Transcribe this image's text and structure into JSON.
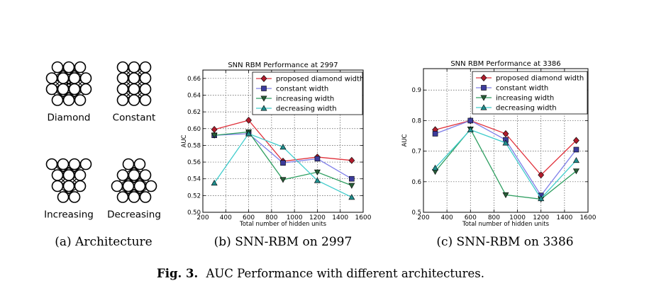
{
  "architecture": {
    "labels": [
      "Diamond",
      "Constant",
      "Increasing",
      "Decreasing"
    ],
    "networks": [
      {
        "name": "Diamond",
        "layers": [
          3,
          4,
          4,
          3
        ]
      },
      {
        "name": "Constant",
        "layers": [
          3,
          3,
          3,
          3
        ]
      },
      {
        "name": "Increasing",
        "layers": [
          4,
          3,
          3,
          2
        ]
      },
      {
        "name": "Decreasing",
        "layers": [
          2,
          3,
          4,
          3
        ]
      }
    ]
  },
  "subcaptions": {
    "a": "(a) Architecture",
    "b": "(b) SNN-RBM on 2997",
    "c": "(c) SNN-RBM on 3386"
  },
  "caption": {
    "bold": "Fig. 3.",
    "text": "AUC Performance with different architectures."
  },
  "chart_data": [
    {
      "type": "line",
      "title": "SNN RBM Performance at 2997",
      "xlabel": "Total number of hidden units",
      "ylabel": "AUC",
      "xlim": [
        200,
        1600
      ],
      "ylim": [
        0.5,
        0.67
      ],
      "xticks": [
        200,
        400,
        600,
        800,
        1000,
        1200,
        1400,
        1600
      ],
      "xtick_labels": [
        "200",
        "400",
        "600",
        "800",
        "1000",
        "1200",
        "1400",
        "1600"
      ],
      "yticks": [
        0.5,
        0.52,
        0.54,
        0.56,
        0.58,
        0.6,
        0.62,
        0.64,
        0.66
      ],
      "ytick_labels": [
        "0.50",
        "0.52",
        "0.54",
        "0.56",
        "0.58",
        "0.60",
        "0.62",
        "0.64",
        "0.66"
      ],
      "grid": true,
      "legend_position": "top-right",
      "x": [
        300,
        600,
        900,
        1200,
        1500
      ],
      "series": [
        {
          "name": "proposed diamond width",
          "color": "#e0303a",
          "marker_color": "#b01c2c",
          "marker": "diamond",
          "values": [
            0.599,
            0.61,
            0.561,
            0.566,
            0.562
          ]
        },
        {
          "name": "constant width",
          "color": "#7f7fe8",
          "marker_color": "#3c3c9c",
          "marker": "square",
          "values": [
            0.592,
            0.594,
            0.559,
            0.564,
            0.54
          ]
        },
        {
          "name": "increasing width",
          "color": "#2e9e60",
          "marker_color": "#285e38",
          "marker": "triangle-down",
          "values": [
            0.592,
            0.596,
            0.539,
            0.548,
            0.532
          ]
        },
        {
          "name": "decreasing width",
          "color": "#40cccc",
          "marker_color": "#208e8e",
          "marker": "triangle-up",
          "values": [
            0.535,
            0.594,
            0.578,
            0.538,
            0.518
          ]
        }
      ]
    },
    {
      "type": "line",
      "title": "SNN RBM Performance at 3386",
      "xlabel": "Total number of hidden units",
      "ylabel": "AUC",
      "xlim": [
        200,
        1600
      ],
      "ylim": [
        0.5,
        0.97
      ],
      "xticks": [
        200,
        400,
        600,
        800,
        1000,
        1200,
        1400,
        1600
      ],
      "xtick_labels": [
        "200",
        "400",
        "600",
        "800",
        "1000",
        "1200",
        "1400",
        "1600"
      ],
      "yticks": [
        0.5,
        0.6,
        0.7,
        0.8,
        0.9
      ],
      "ytick_labels": [
        "0.5",
        "0.6",
        "0.7",
        "0.8",
        "0.9"
      ],
      "grid": true,
      "legend_position": "top-right",
      "x": [
        300,
        600,
        900,
        1200,
        1500
      ],
      "series": [
        {
          "name": "proposed diamond width",
          "color": "#e0303a",
          "marker_color": "#b01c2c",
          "marker": "diamond",
          "values": [
            0.77,
            0.8,
            0.757,
            0.622,
            0.735
          ]
        },
        {
          "name": "constant width",
          "color": "#7f7fe8",
          "marker_color": "#3c3c9c",
          "marker": "square",
          "values": [
            0.757,
            0.8,
            0.737,
            0.555,
            0.705
          ]
        },
        {
          "name": "increasing width",
          "color": "#2e9e60",
          "marker_color": "#285e38",
          "marker": "triangle-down",
          "values": [
            0.633,
            0.772,
            0.557,
            0.543,
            0.635
          ]
        },
        {
          "name": "decreasing width",
          "color": "#40cccc",
          "marker_color": "#208e8e",
          "marker": "triangle-up",
          "values": [
            0.645,
            0.77,
            0.727,
            0.545,
            0.67
          ]
        }
      ]
    }
  ]
}
